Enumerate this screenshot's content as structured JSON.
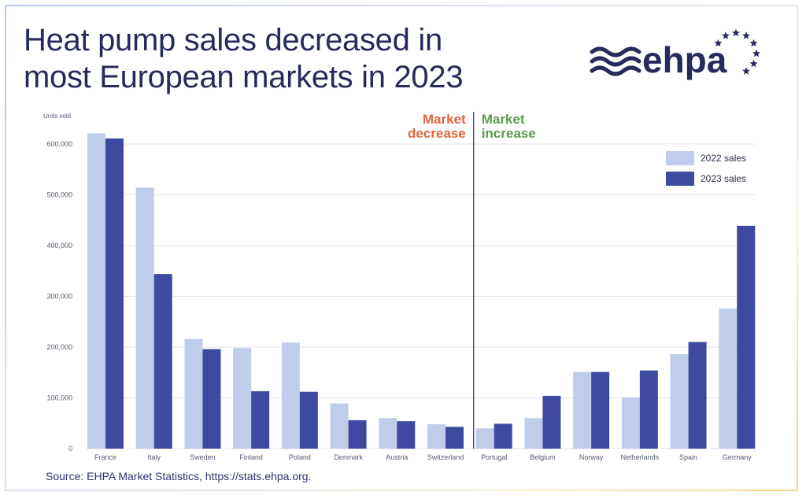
{
  "title_line1": "Heat pump sales decreased in",
  "title_line2": "most European markets in 2023",
  "logo_text": "ehpa",
  "source": "Source: EHPA Market Statistics, https://stats.ehpa.org.",
  "colors": {
    "series_2022": "#bfcdea",
    "series_2023": "#3d4aa0",
    "decrease": "#e2643a",
    "increase": "#5b9a4e",
    "title": "#262a5c",
    "divider": "#2e3466"
  },
  "chart_data": {
    "type": "bar",
    "ylabel": "Units sold",
    "ylim": [
      0,
      600000
    ],
    "yticks": [
      0,
      100000,
      200000,
      300000,
      400000,
      500000,
      600000
    ],
    "ytick_labels": [
      "0",
      "100,000",
      "200,000",
      "300,000",
      "400,000",
      "500,000",
      "600,000"
    ],
    "grid": true,
    "legend_position": "top-right",
    "categories": [
      "France",
      "Italy",
      "Sweden",
      "Finland",
      "Poland",
      "Denmark",
      "Austria",
      "Switzerland",
      "Portugal",
      "Belgium",
      "Norway",
      "Netherlands",
      "Spain",
      "Germany"
    ],
    "series": [
      {
        "name": "2022 sales",
        "values": [
          621000,
          514000,
          216000,
          198000,
          209000,
          89000,
          60000,
          48000,
          40000,
          60000,
          151000,
          101000,
          186000,
          276000
        ]
      },
      {
        "name": "2023 sales",
        "values": [
          611000,
          344000,
          196000,
          113000,
          112000,
          56000,
          54000,
          43000,
          49000,
          104000,
          151000,
          154000,
          210000,
          439000
        ]
      }
    ],
    "annotations": {
      "decrease_line1": "Market",
      "decrease_line2": "decrease",
      "increase_line1": "Market",
      "increase_line2": "increase",
      "divider_after_index": 7
    }
  }
}
